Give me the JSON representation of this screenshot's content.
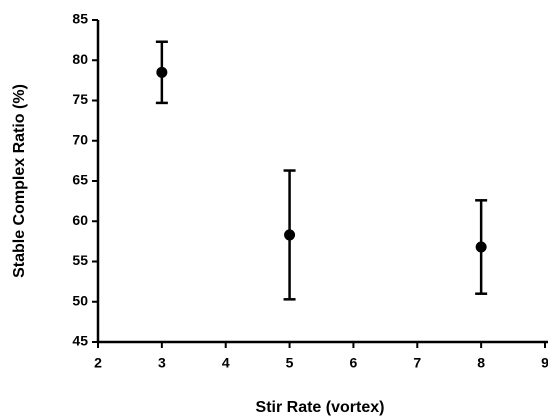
{
  "chart_data": {
    "type": "scatter",
    "x_label": "Stir Rate (vortex)",
    "y_label": "Stable Complex Ratio (%)",
    "series": [
      {
        "x": [
          3,
          5,
          8
        ],
        "values": [
          78.5,
          58.3,
          56.8
        ],
        "errors": [
          3.8,
          8.0,
          5.8
        ],
        "color": "#000000"
      }
    ],
    "xlim": [
      2,
      9
    ],
    "xticks": [
      2,
      3,
      4,
      5,
      6,
      7,
      8,
      9
    ],
    "ylim": [
      45,
      85
    ],
    "yticks": [
      45,
      50,
      55,
      60,
      65,
      70,
      75,
      80,
      85
    ],
    "grid": false
  }
}
